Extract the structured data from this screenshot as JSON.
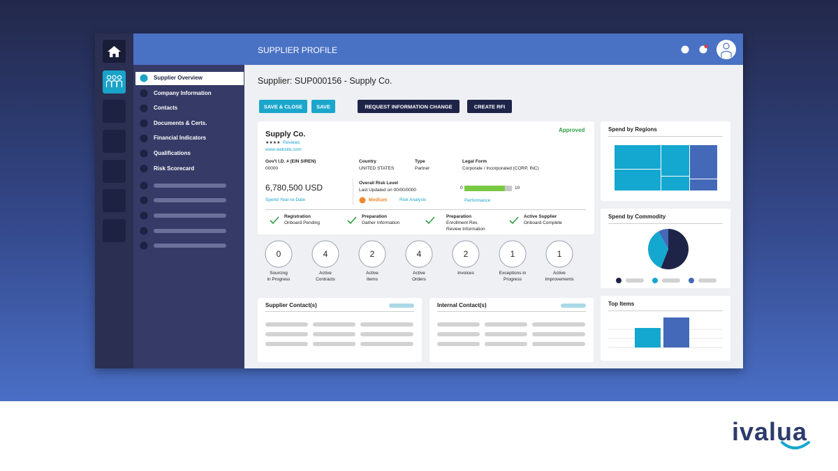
{
  "header": {
    "title": "SUPPLIER PROFILE"
  },
  "nav": [
    "Supplier Overview",
    "Company Information",
    "Contacts",
    "Documents & Certs.",
    "Financial Indicators",
    "Qualifications",
    "Risk Scorecard"
  ],
  "page_title": "Supplier: SUP000156 - Supply Co.",
  "buttons": [
    "SAVE & CLOSE",
    "SAVE",
    "REQUEST INFORMATION CHANGE",
    "CREATE RFI"
  ],
  "supplier": {
    "name": "Supply Co.",
    "rating": "★★★★",
    "reviews": "Reviews",
    "website": "www.website.com",
    "status": "Approved",
    "fields": [
      {
        "label": "Gov't I.D. # (EIN SIREN)",
        "value": "00000"
      },
      {
        "label": "Country",
        "value": "UNITED STATES"
      },
      {
        "label": "Type",
        "value": "Partner"
      },
      {
        "label": "Legal Form",
        "value": "Corporate / Incorporated (CORP, INC)"
      }
    ],
    "spend": {
      "value": "6,780,500 USD",
      "label": "Spend Year-to-Date"
    },
    "risk": {
      "title": "Overall Risk Level",
      "updated": "Last Updated on 00/00/0000",
      "level": "Medium",
      "link": "Risk Analysis"
    },
    "performance": {
      "min": 0,
      "max": 10,
      "value": 8.5,
      "label": "Performance"
    }
  },
  "steps": [
    {
      "title": "Registration",
      "lines": [
        "Onboard Pending"
      ]
    },
    {
      "title": "Preparation",
      "lines": [
        "Gather Information"
      ]
    },
    {
      "title": "Preparation",
      "lines": [
        "Enrollment Rev.",
        "Review Information"
      ]
    },
    {
      "title": "Active Supplier",
      "lines": [
        "Onboard Complete"
      ]
    }
  ],
  "metrics": [
    {
      "value": 0,
      "lines": [
        "Sourcing",
        "in Progress"
      ]
    },
    {
      "value": 4,
      "lines": [
        "Active",
        "Contracts"
      ]
    },
    {
      "value": 2,
      "lines": [
        "Active",
        "Items"
      ]
    },
    {
      "value": 4,
      "lines": [
        "Active",
        "Orders"
      ]
    },
    {
      "value": 2,
      "lines": [
        "Invoices"
      ]
    },
    {
      "value": 1,
      "lines": [
        "Exceptions in",
        "Progress"
      ]
    },
    {
      "value": 1,
      "lines": [
        "Active",
        "Improvements"
      ]
    }
  ],
  "contacts": [
    "Supplier Contact(s)",
    "Internal Contact(s)"
  ],
  "widgets": {
    "regions": {
      "title": "Spend by Regions"
    },
    "commodity": {
      "type": "pie",
      "title": "Spend by Commodity",
      "values": [
        56,
        36,
        8
      ],
      "colors": [
        "#1e2448",
        "#14a7cf",
        "#4369b8"
      ]
    },
    "top_items": {
      "type": "bar",
      "title": "Top Items",
      "values": [
        28,
        43
      ],
      "colors": [
        "#14a7cf",
        "#4369b8"
      ]
    }
  },
  "brand": "ivalua"
}
